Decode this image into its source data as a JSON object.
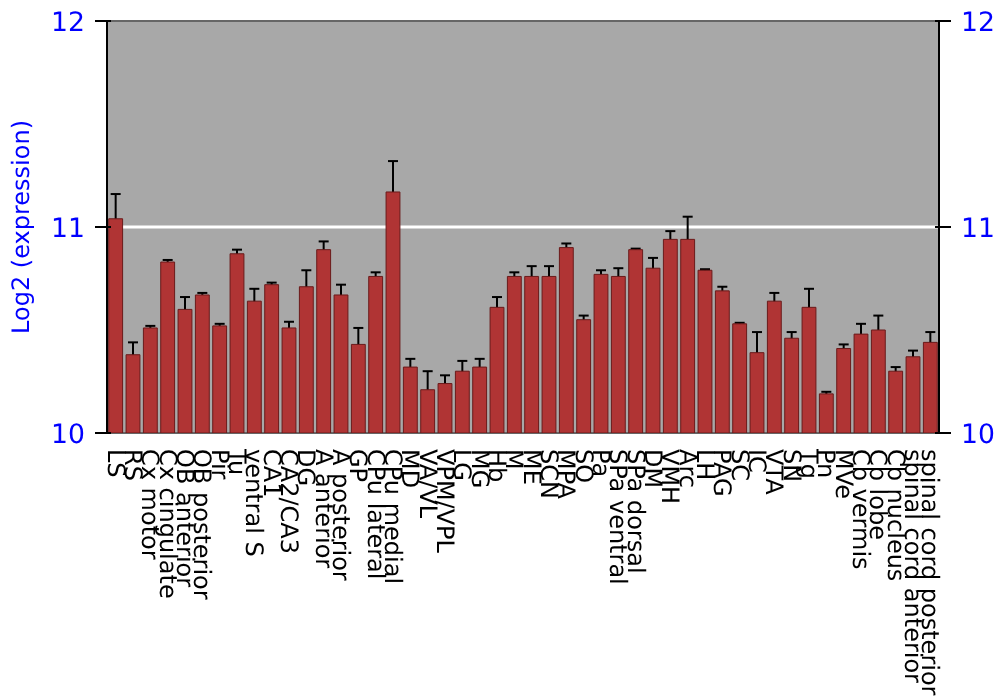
{
  "chart_data": {
    "type": "bar",
    "ylabel": "Log2 (expression)",
    "categories": [
      "LS",
      "RS",
      "Cx motor",
      "Cx cingulate",
      "OB anterior",
      "OB posterior",
      "Pir",
      "Tu",
      "ventral S",
      "CA1",
      "CA2/CA3",
      "DG",
      "A anterior",
      "A posterior",
      "GP",
      "CPu lateral",
      "CPu medial",
      "MD",
      "VA/VL",
      "VPM/VPL",
      "LG",
      "MG",
      "Hb",
      "M",
      "ME",
      "SCN",
      "MPA",
      "SO",
      "Pa",
      "SPa ventral",
      "SPa dorsal",
      "DM",
      "VMH",
      "Arc",
      "LH",
      "PAG",
      "SC",
      "IC",
      "VTA",
      "SN",
      "Tg",
      "Pn",
      "MVe",
      "Cb vermis",
      "Cb lobe",
      "Cb nucleus",
      "spinal cord anterior",
      "spinal cord posterior"
    ],
    "values": [
      11.04,
      10.38,
      10.51,
      10.83,
      10.6,
      10.67,
      10.52,
      10.87,
      10.64,
      10.72,
      10.51,
      10.71,
      10.89,
      10.67,
      10.43,
      10.76,
      11.17,
      10.32,
      10.21,
      10.24,
      10.3,
      10.32,
      10.61,
      10.76,
      10.76,
      10.76,
      10.9,
      10.55,
      10.77,
      10.76,
      10.89,
      10.8,
      10.94,
      10.94,
      10.79,
      10.69,
      10.53,
      10.39,
      10.64,
      10.46,
      10.61,
      10.19,
      10.41,
      10.48,
      10.5,
      10.3,
      10.37,
      10.44
    ],
    "errors": [
      0.12,
      0.06,
      0.01,
      0.01,
      0.06,
      0.01,
      0.01,
      0.02,
      0.06,
      0.01,
      0.03,
      0.08,
      0.04,
      0.05,
      0.08,
      0.02,
      0.15,
      0.04,
      0.09,
      0.04,
      0.05,
      0.04,
      0.05,
      0.02,
      0.05,
      0.05,
      0.02,
      0.02,
      0.02,
      0.04,
      0.005,
      0.05,
      0.04,
      0.11,
      0.005,
      0.02,
      0.005,
      0.1,
      0.04,
      0.03,
      0.09,
      0.01,
      0.02,
      0.05,
      0.07,
      0.02,
      0.03,
      0.05
    ],
    "color": "#b03434",
    "ylim": [
      10,
      12
    ],
    "yticks": [
      10,
      11,
      12
    ],
    "y2lim": [
      10,
      12
    ],
    "y2ticks": [
      10,
      11,
      12
    ],
    "grid": "y"
  }
}
